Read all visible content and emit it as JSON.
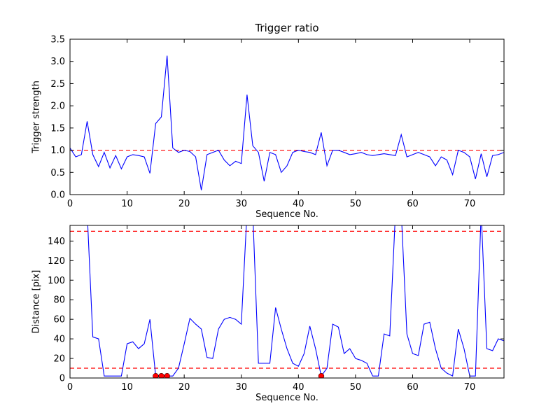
{
  "figure": {
    "background": "#ffffff",
    "frame_color": "#000000",
    "line_color": "#0000ff",
    "threshold_color": "#ff0000",
    "marker_color": "#ff0000"
  },
  "chart_data": [
    {
      "type": "line",
      "title": "Trigger ratio",
      "xlabel": "Sequence No.",
      "ylabel": "Trigger strength",
      "xlim": [
        0,
        76
      ],
      "ylim": [
        0,
        3.5
      ],
      "xticks": [
        0,
        10,
        20,
        30,
        40,
        50,
        60,
        70
      ],
      "yticks": [
        0.0,
        0.5,
        1.0,
        1.5,
        2.0,
        2.5,
        3.0,
        3.5
      ],
      "ytick_labels": [
        "0.0",
        "0.5",
        "1.0",
        "1.5",
        "2.0",
        "2.5",
        "3.0",
        "3.5"
      ],
      "grid": false,
      "legend": null,
      "thresholds": [
        {
          "name": "trigger-threshold",
          "y": 1.0,
          "color": "#ff0000",
          "style": "dashed"
        }
      ],
      "series": [
        {
          "name": "trigger-strength",
          "color": "#0000ff",
          "x0": 0,
          "dx": 1,
          "values": [
            1.05,
            0.85,
            0.9,
            1.65,
            0.9,
            0.63,
            0.95,
            0.6,
            0.88,
            0.58,
            0.85,
            0.9,
            0.88,
            0.85,
            0.48,
            1.6,
            1.75,
            3.13,
            1.05,
            0.95,
            1.0,
            0.97,
            0.85,
            0.1,
            0.9,
            0.95,
            1.0,
            0.78,
            0.65,
            0.75,
            0.7,
            2.25,
            1.1,
            0.95,
            0.3,
            0.95,
            0.9,
            0.5,
            0.65,
            0.95,
            1.0,
            0.97,
            0.95,
            0.9,
            1.4,
            0.65,
            1.0,
            1.0,
            0.95,
            0.9,
            0.92,
            0.95,
            0.9,
            0.88,
            0.9,
            0.92,
            0.9,
            0.88,
            1.35,
            0.85,
            0.9,
            0.95,
            0.9,
            0.85,
            0.65,
            0.85,
            0.78,
            0.45,
            1.0,
            0.95,
            0.85,
            0.35,
            0.92,
            0.4,
            0.88,
            0.9,
            0.95
          ]
        }
      ],
      "markers": []
    },
    {
      "type": "line",
      "title": "",
      "xlabel": "Sequence No.",
      "ylabel": "Distance [pix]",
      "xlim": [
        0,
        76
      ],
      "ylim": [
        0,
        156
      ],
      "xticks": [
        0,
        10,
        20,
        30,
        40,
        50,
        60,
        70
      ],
      "yticks": [
        0,
        20,
        40,
        60,
        80,
        100,
        120,
        140
      ],
      "ytick_labels": [
        "0",
        "20",
        "40",
        "60",
        "80",
        "100",
        "120",
        "140"
      ],
      "grid": false,
      "legend": null,
      "thresholds": [
        {
          "name": "upper-distance-threshold",
          "y": 150,
          "color": "#ff0000",
          "style": "dashed"
        },
        {
          "name": "lower-distance-threshold",
          "y": 10,
          "color": "#ff0000",
          "style": "dashed"
        }
      ],
      "series": [
        {
          "name": "distance",
          "color": "#0000ff",
          "x0": 0,
          "dx": 1,
          "values": [
            170,
            170,
            170,
            170,
            42,
            40,
            2,
            2,
            2,
            2,
            35,
            37,
            30,
            35,
            60,
            2,
            2,
            2,
            2,
            10,
            35,
            61,
            55,
            50,
            21,
            20,
            50,
            60,
            62,
            60,
            55,
            170,
            170,
            15,
            15,
            15,
            72,
            50,
            30,
            15,
            12,
            25,
            53,
            30,
            2,
            10,
            55,
            52,
            25,
            30,
            20,
            18,
            15,
            2,
            2,
            45,
            43,
            170,
            170,
            45,
            25,
            23,
            55,
            57,
            30,
            10,
            5,
            2,
            50,
            30,
            2,
            2,
            170,
            30,
            28,
            40,
            38
          ]
        }
      ],
      "markers": [
        {
          "x": 15,
          "y": 2
        },
        {
          "x": 16,
          "y": 2
        },
        {
          "x": 17,
          "y": 2
        },
        {
          "x": 44,
          "y": 2
        }
      ],
      "marker_color": "#ff0000"
    }
  ]
}
